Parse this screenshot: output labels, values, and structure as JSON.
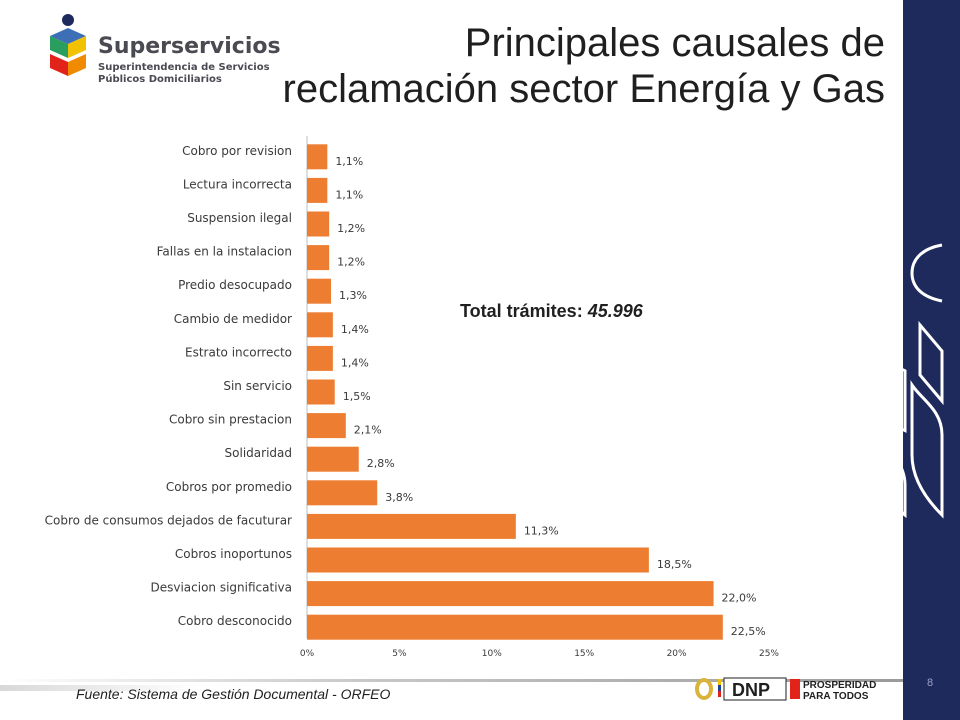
{
  "brand": {
    "name": "Superservicios",
    "subtitle_line1": "Superintendencia de Servicios",
    "subtitle_line2": "Públicos Domiciliarios"
  },
  "title_line1": "Principales causales de",
  "title_line2": "reclamación sector Energía y Gas",
  "total_label": "Total trámites:",
  "total_value": "45.996",
  "source": "Fuente: Sistema de Gestión Documental - ORFEO",
  "page_number": "8",
  "footer_logos": {
    "dnp": "DNP",
    "prosperidad_line1": "PROSPERIDAD",
    "prosperidad_line2": "PARA TODOS"
  },
  "colors": {
    "bar": "#ed7d31",
    "band": "#1f2a5c"
  },
  "chart_data": {
    "type": "bar",
    "orientation": "horizontal",
    "categories": [
      "Cobro por revision",
      "Lectura incorrecta",
      "Suspension ilegal",
      "Fallas en la instalacion",
      "Predio desocupado",
      "Cambio de medidor",
      "Estrato incorrecto",
      "Sin servicio",
      "Cobro sin prestacion",
      "Solidaridad",
      "Cobros por promedio",
      "Cobro de consumos dejados de facuturar",
      "Cobros inoportunos",
      "Desviacion significativa",
      "Cobro desconocido"
    ],
    "values": [
      1.1,
      1.1,
      1.2,
      1.2,
      1.3,
      1.4,
      1.4,
      1.5,
      2.1,
      2.8,
      3.8,
      11.3,
      18.5,
      22.0,
      22.5
    ],
    "data_labels": [
      "1,1%",
      "1,1%",
      "1,2%",
      "1,2%",
      "1,3%",
      "1,4%",
      "1,4%",
      "1,5%",
      "2,1%",
      "2,8%",
      "3,8%",
      "11,3%",
      "18,5%",
      "22,0%",
      "22,5%"
    ],
    "xlim": [
      0,
      25
    ],
    "x_ticks": [
      0,
      5,
      10,
      15,
      20,
      25
    ],
    "x_tick_labels": [
      "0%",
      "5%",
      "10%",
      "15%",
      "20%",
      "25%"
    ],
    "grid": false
  }
}
